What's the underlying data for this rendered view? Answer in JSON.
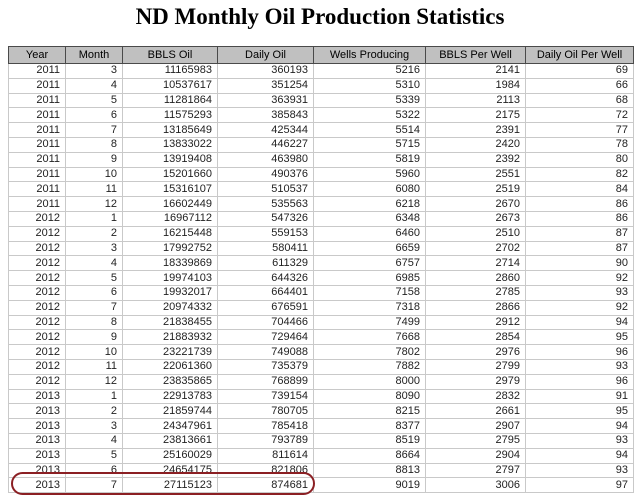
{
  "title": "ND Monthly Oil Production Statistics",
  "chart_data": {
    "type": "table",
    "title": "ND Monthly Oil Production Statistics",
    "columns": [
      "Year",
      "Month",
      "BBLS Oil",
      "Daily Oil",
      "Wells Producing",
      "BBLS Per Well",
      "Daily Oil Per Well"
    ],
    "rows": [
      [
        2011,
        3,
        11165983,
        360193,
        5216,
        2141,
        69
      ],
      [
        2011,
        4,
        10537617,
        351254,
        5310,
        1984,
        66
      ],
      [
        2011,
        5,
        11281864,
        363931,
        5339,
        2113,
        68
      ],
      [
        2011,
        6,
        11575293,
        385843,
        5322,
        2175,
        72
      ],
      [
        2011,
        7,
        13185649,
        425344,
        5514,
        2391,
        77
      ],
      [
        2011,
        8,
        13833022,
        446227,
        5715,
        2420,
        78
      ],
      [
        2011,
        9,
        13919408,
        463980,
        5819,
        2392,
        80
      ],
      [
        2011,
        10,
        15201660,
        490376,
        5960,
        2551,
        82
      ],
      [
        2011,
        11,
        15316107,
        510537,
        6080,
        2519,
        84
      ],
      [
        2011,
        12,
        16602449,
        535563,
        6218,
        2670,
        86
      ],
      [
        2012,
        1,
        16967112,
        547326,
        6348,
        2673,
        86
      ],
      [
        2012,
        2,
        16215448,
        559153,
        6460,
        2510,
        87
      ],
      [
        2012,
        3,
        17992752,
        580411,
        6659,
        2702,
        87
      ],
      [
        2012,
        4,
        18339869,
        611329,
        6757,
        2714,
        90
      ],
      [
        2012,
        5,
        19974103,
        644326,
        6985,
        2860,
        92
      ],
      [
        2012,
        6,
        19932017,
        664401,
        7158,
        2785,
        93
      ],
      [
        2012,
        7,
        20974332,
        676591,
        7318,
        2866,
        92
      ],
      [
        2012,
        8,
        21838455,
        704466,
        7499,
        2912,
        94
      ],
      [
        2012,
        9,
        21883932,
        729464,
        7668,
        2854,
        95
      ],
      [
        2012,
        10,
        23221739,
        749088,
        7802,
        2976,
        96
      ],
      [
        2012,
        11,
        22061360,
        735379,
        7882,
        2799,
        93
      ],
      [
        2012,
        12,
        23835865,
        768899,
        8000,
        2979,
        96
      ],
      [
        2013,
        1,
        22913783,
        739154,
        8090,
        2832,
        91
      ],
      [
        2013,
        2,
        21859744,
        780705,
        8215,
        2661,
        95
      ],
      [
        2013,
        3,
        24347961,
        785418,
        8377,
        2907,
        94
      ],
      [
        2013,
        4,
        23813661,
        793789,
        8519,
        2795,
        93
      ],
      [
        2013,
        5,
        25160029,
        811614,
        8664,
        2904,
        94
      ],
      [
        2013,
        6,
        24654175,
        821806,
        8813,
        2797,
        93
      ],
      [
        2013,
        7,
        27115123,
        874681,
        9019,
        3006,
        97
      ]
    ]
  },
  "annotation": {
    "type": "hand-drawn-oval",
    "color": "#8b1f23",
    "circled_row_index": 28,
    "circled_values": [
      2013,
      7,
      27115123,
      874681
    ]
  },
  "colors": {
    "header_bg": "#c0c0c0",
    "grid_line": "#c9c9c9",
    "annotation_red": "#8b1f23",
    "background": "#ffffff"
  }
}
